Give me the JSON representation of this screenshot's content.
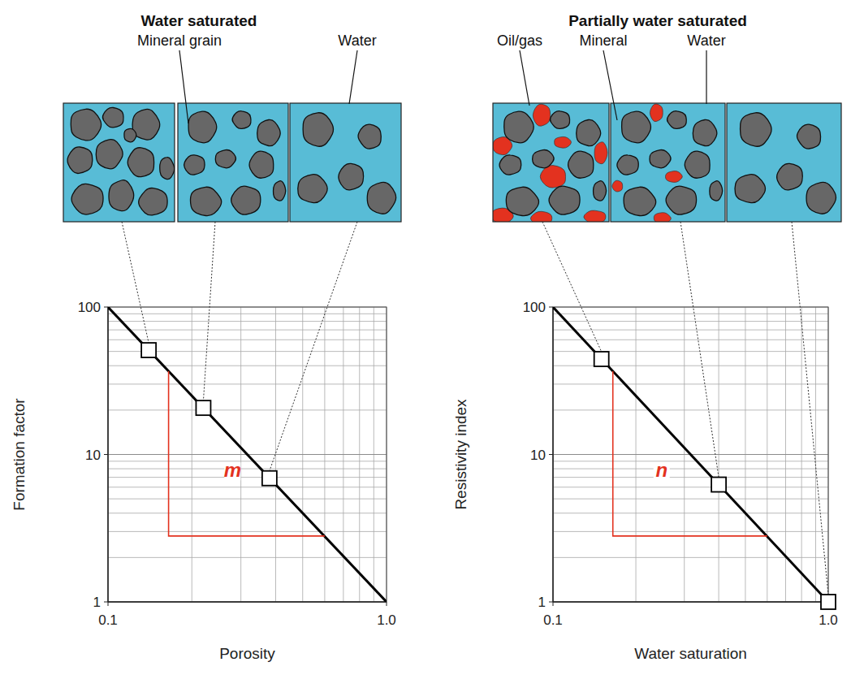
{
  "chart_data": [
    {
      "type": "line",
      "title": "Water saturated",
      "x_label": "Porosity",
      "y_label": "Formation factor",
      "log": true,
      "grid": true,
      "xlim": [
        0.1,
        1
      ],
      "ylim": [
        1,
        100
      ],
      "xticks": [
        0.1,
        {
          "value": 1,
          "label": "1.0"
        }
      ],
      "yticks": [
        1,
        10,
        100
      ],
      "series": [
        {
          "type": "line",
          "color": "#000000",
          "x": [
            0.1,
            1
          ],
          "values": [
            100,
            1
          ]
        },
        {
          "type": "scatter",
          "marker": "square",
          "color": "#000000",
          "x": [
            0.14,
            0.22,
            0.38
          ],
          "values": [
            51,
            20.7,
            6.9
          ]
        },
        {
          "type": "line",
          "color": "#e3321f",
          "x": [
            0.165,
            0.165,
            0.6
          ],
          "values": [
            36.7,
            2.8,
            2.8
          ]
        }
      ],
      "annotations": [
        {
          "text": "Mineral grain"
        },
        {
          "text": "Water"
        },
        {
          "text": "m",
          "x": 0.28,
          "y": 7.2
        }
      ]
    },
    {
      "type": "line",
      "title": "Partially water saturated",
      "x_label": "Water saturation",
      "y_label": "Resistivity index",
      "log": true,
      "grid": true,
      "xlim": [
        0.1,
        1
      ],
      "ylim": [
        1,
        100
      ],
      "xticks": [
        0.1,
        {
          "value": 1,
          "label": "1.0"
        }
      ],
      "yticks": [
        1,
        10,
        100
      ],
      "series": [
        {
          "type": "line",
          "color": "#000000",
          "x": [
            0.1,
            1
          ],
          "values": [
            100,
            1
          ]
        },
        {
          "type": "scatter",
          "marker": "square",
          "color": "#000000",
          "x": [
            0.15,
            0.4,
            1
          ],
          "values": [
            44.4,
            6.25,
            1
          ]
        },
        {
          "type": "line",
          "color": "#e3321f",
          "x": [
            0.165,
            0.165,
            0.6
          ],
          "values": [
            36.7,
            2.8,
            2.8
          ]
        }
      ],
      "annotations": [
        {
          "text": "Oil/gas"
        },
        {
          "text": "Mineral"
        },
        {
          "text": "Water"
        },
        {
          "text": "n",
          "x": 0.248,
          "y": 7.2
        }
      ]
    }
  ]
}
